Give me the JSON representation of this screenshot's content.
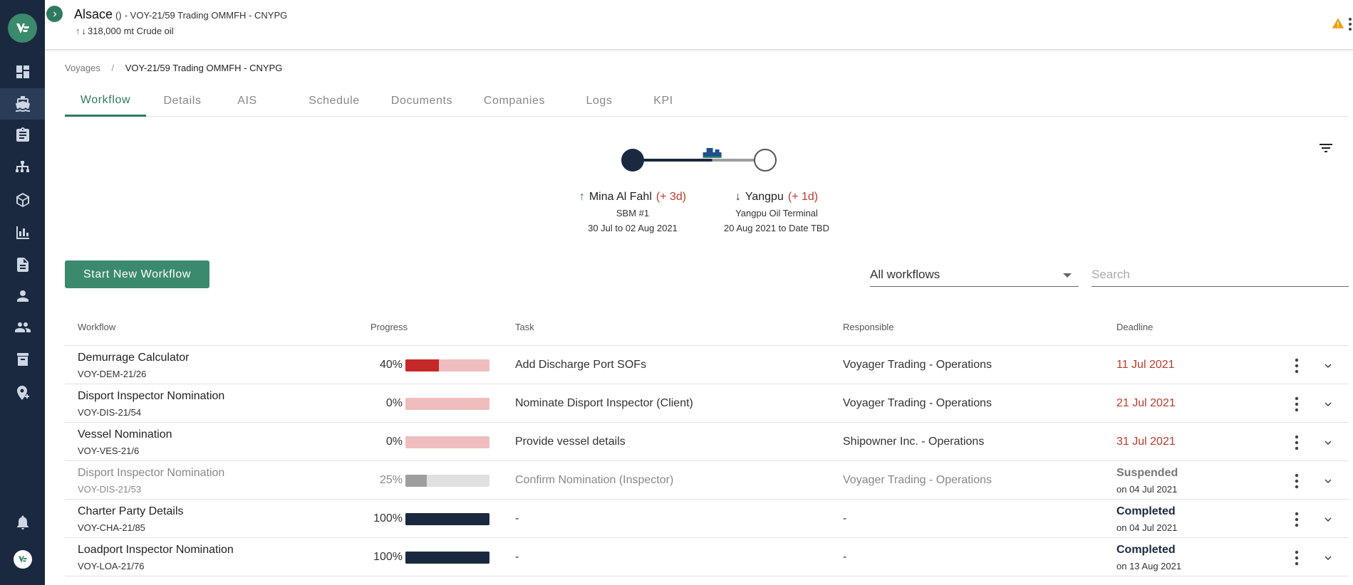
{
  "header": {
    "vessel_name": "Alsace",
    "vessel_parens": "()",
    "voyage_title": "- VOY-21/59 Trading OMMFH - CNYPG",
    "cargo": "318,000 mt Crude oil",
    "icons": [
      "collapse-sidebar-icon",
      "arrow-up-icon",
      "arrow-down-icon",
      "warning-icon",
      "more-vertical-icon"
    ]
  },
  "sidebar": {
    "items": [
      {
        "icon": "dashboard-icon"
      },
      {
        "icon": "ship-icon",
        "active": true
      },
      {
        "icon": "clipboard-icon"
      },
      {
        "icon": "org-chart-icon"
      },
      {
        "icon": "cube-icon"
      },
      {
        "icon": "bar-chart-icon"
      },
      {
        "icon": "document-icon"
      },
      {
        "icon": "person-icon"
      },
      {
        "icon": "people-icon"
      },
      {
        "icon": "archive-icon"
      },
      {
        "icon": "add-location-icon"
      }
    ],
    "bottom": [
      "bell-icon",
      "app-logo-icon"
    ]
  },
  "breadcrumb": {
    "parent": "Voyages",
    "separator": "/",
    "current": "VOY-21/59 Trading OMMFH - CNYPG"
  },
  "tabs": [
    {
      "label": "Workflow",
      "active": true
    },
    {
      "label": "Details"
    },
    {
      "label": "AIS"
    },
    {
      "label": "Schedule"
    },
    {
      "label": "Documents"
    },
    {
      "label": "Companies"
    },
    {
      "label": "Logs"
    },
    {
      "label": "KPI"
    }
  ],
  "route": {
    "load_port": {
      "name": "Mina Al Fahl",
      "delay": "(+ 3d)",
      "terminal": "SBM #1",
      "dates": "30 Jul to 02 Aug 2021"
    },
    "discharge_port": {
      "name": "Yangpu",
      "delay": "(+ 1d)",
      "terminal": "Yangpu Oil Terminal",
      "dates": "20 Aug 2021 to Date TBD"
    },
    "progress": 0.6
  },
  "toolbar": {
    "start_label": "Start New Workflow",
    "filter_value": "All workflows",
    "search_placeholder": "Search"
  },
  "table": {
    "columns": [
      "Workflow",
      "Progress",
      "Task",
      "Responsible",
      "Deadline"
    ],
    "rows": [
      {
        "name": "Demurrage Calculator",
        "code": "VOY-DEM-21/26",
        "progress": "40%",
        "task": "Add Discharge Port SOFs",
        "responsible": "Voyager Trading - Operations",
        "deadline": "11 Jul 2021"
      },
      {
        "name": "Disport Inspector Nomination",
        "code": "VOY-DIS-21/54",
        "progress": "0%",
        "task": "Nominate Disport Inspector (Client)",
        "responsible": "Voyager Trading - Operations",
        "deadline": "21 Jul 2021"
      },
      {
        "name": "Vessel Nomination",
        "code": "VOY-VES-21/6",
        "progress": "0%",
        "task": "Provide vessel details",
        "responsible": "Shipowner Inc. - Operations",
        "deadline": "31 Jul 2021"
      },
      {
        "name": "Disport Inspector Nomination",
        "code": "VOY-DIS-21/53",
        "progress": "25%",
        "task": "Confirm Nomination (Inspector)",
        "responsible": "Voyager Trading - Operations",
        "status": "Suspended",
        "status_date": "on 04 Jul 2021"
      },
      {
        "name": "Charter Party Details",
        "code": "VOY-CHA-21/85",
        "progress": "100%",
        "task": "-",
        "responsible": "-",
        "status": "Completed",
        "status_date": "on 04 Jul 2021"
      },
      {
        "name": "Loadport Inspector Nomination",
        "code": "VOY-LOA-21/76",
        "progress": "100%",
        "task": "-",
        "responsible": "-",
        "status": "Completed",
        "status_date": "on 13 Aug 2021"
      }
    ]
  },
  "colors": {
    "sidebar": "#1a2940",
    "accent": "#3b8a6d",
    "overdue": "#c0392b",
    "bar_overdue_fill": "#c62828",
    "bar_overdue_track": "#efbdbd",
    "bar_suspended_fill": "#9e9e9e",
    "bar_suspended_track": "#e0e0e0",
    "bar_complete": "#1a2940"
  }
}
